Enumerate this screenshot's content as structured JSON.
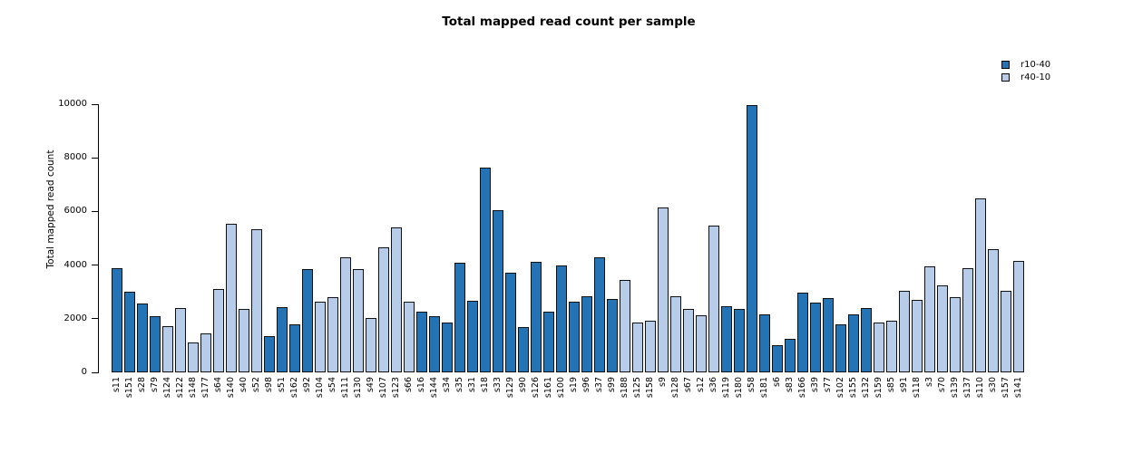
{
  "title": "Total mapped read count per sample",
  "legend": [
    {
      "label": "r10-40",
      "color": "#2473b5"
    },
    {
      "label": "r40-10",
      "color": "#b7cce9"
    }
  ],
  "chart_data": {
    "type": "bar",
    "title": "Total mapped read count per sample",
    "xlabel": "",
    "ylabel": "Total mapped read count",
    "ylim": [
      0,
      10000
    ],
    "yticks": [
      0,
      2000,
      4000,
      6000,
      8000,
      10000
    ],
    "grid": false,
    "legend_position": "top-right",
    "series_colors": {
      "r10-40": "#2473b5",
      "r40-10": "#b7cce9"
    },
    "points": [
      {
        "sample": "s11",
        "value": 3900,
        "series": "r10-40"
      },
      {
        "sample": "s151",
        "value": 3000,
        "series": "r10-40"
      },
      {
        "sample": "s28",
        "value": 2570,
        "series": "r10-40"
      },
      {
        "sample": "s79",
        "value": 2100,
        "series": "r10-40"
      },
      {
        "sample": "s124",
        "value": 1730,
        "series": "r40-10"
      },
      {
        "sample": "s122",
        "value": 2400,
        "series": "r40-10"
      },
      {
        "sample": "s148",
        "value": 1100,
        "series": "r40-10"
      },
      {
        "sample": "s177",
        "value": 1450,
        "series": "r40-10"
      },
      {
        "sample": "s64",
        "value": 3100,
        "series": "r40-10"
      },
      {
        "sample": "s140",
        "value": 5550,
        "series": "r40-10"
      },
      {
        "sample": "s40",
        "value": 2350,
        "series": "r40-10"
      },
      {
        "sample": "s52",
        "value": 5350,
        "series": "r40-10"
      },
      {
        "sample": "s98",
        "value": 1350,
        "series": "r10-40"
      },
      {
        "sample": "s51",
        "value": 2430,
        "series": "r10-40"
      },
      {
        "sample": "s162",
        "value": 1780,
        "series": "r10-40"
      },
      {
        "sample": "s92",
        "value": 3850,
        "series": "r10-40"
      },
      {
        "sample": "s104",
        "value": 2640,
        "series": "r40-10"
      },
      {
        "sample": "s54",
        "value": 2800,
        "series": "r40-10"
      },
      {
        "sample": "s111",
        "value": 4300,
        "series": "r40-10"
      },
      {
        "sample": "s130",
        "value": 3850,
        "series": "r40-10"
      },
      {
        "sample": "s49",
        "value": 2020,
        "series": "r40-10"
      },
      {
        "sample": "s107",
        "value": 4650,
        "series": "r40-10"
      },
      {
        "sample": "s123",
        "value": 5400,
        "series": "r40-10"
      },
      {
        "sample": "s66",
        "value": 2640,
        "series": "r40-10"
      },
      {
        "sample": "s16",
        "value": 2260,
        "series": "r10-40"
      },
      {
        "sample": "s144",
        "value": 2100,
        "series": "r10-40"
      },
      {
        "sample": "s34",
        "value": 1850,
        "series": "r10-40"
      },
      {
        "sample": "s35",
        "value": 4100,
        "series": "r10-40"
      },
      {
        "sample": "s31",
        "value": 2680,
        "series": "r10-40"
      },
      {
        "sample": "s18",
        "value": 7650,
        "series": "r10-40"
      },
      {
        "sample": "s33",
        "value": 6050,
        "series": "r10-40"
      },
      {
        "sample": "s129",
        "value": 3720,
        "series": "r10-40"
      },
      {
        "sample": "s90",
        "value": 1700,
        "series": "r10-40"
      },
      {
        "sample": "s126",
        "value": 4130,
        "series": "r10-40"
      },
      {
        "sample": "s161",
        "value": 2250,
        "series": "r10-40"
      },
      {
        "sample": "s100",
        "value": 4000,
        "series": "r10-40"
      },
      {
        "sample": "s19",
        "value": 2650,
        "series": "r10-40"
      },
      {
        "sample": "s96",
        "value": 2840,
        "series": "r10-40"
      },
      {
        "sample": "s37",
        "value": 4300,
        "series": "r10-40"
      },
      {
        "sample": "s99",
        "value": 2740,
        "series": "r10-40"
      },
      {
        "sample": "s188",
        "value": 3450,
        "series": "r40-10"
      },
      {
        "sample": "s125",
        "value": 1850,
        "series": "r40-10"
      },
      {
        "sample": "s158",
        "value": 1930,
        "series": "r40-10"
      },
      {
        "sample": "s9",
        "value": 6150,
        "series": "r40-10"
      },
      {
        "sample": "s128",
        "value": 2840,
        "series": "r40-10"
      },
      {
        "sample": "s67",
        "value": 2370,
        "series": "r40-10"
      },
      {
        "sample": "s12",
        "value": 2130,
        "series": "r40-10"
      },
      {
        "sample": "s36",
        "value": 5480,
        "series": "r40-10"
      },
      {
        "sample": "s119",
        "value": 2470,
        "series": "r10-40"
      },
      {
        "sample": "s180",
        "value": 2360,
        "series": "r10-40"
      },
      {
        "sample": "s58",
        "value": 9950,
        "series": "r10-40"
      },
      {
        "sample": "s181",
        "value": 2150,
        "series": "r10-40"
      },
      {
        "sample": "s6",
        "value": 1000,
        "series": "r10-40"
      },
      {
        "sample": "s83",
        "value": 1250,
        "series": "r10-40"
      },
      {
        "sample": "s166",
        "value": 2970,
        "series": "r10-40"
      },
      {
        "sample": "s39",
        "value": 2600,
        "series": "r10-40"
      },
      {
        "sample": "s77",
        "value": 2770,
        "series": "r10-40"
      },
      {
        "sample": "s102",
        "value": 1780,
        "series": "r10-40"
      },
      {
        "sample": "s155",
        "value": 2170,
        "series": "r10-40"
      },
      {
        "sample": "s132",
        "value": 2400,
        "series": "r10-40"
      },
      {
        "sample": "s159",
        "value": 1850,
        "series": "r40-10"
      },
      {
        "sample": "s85",
        "value": 1930,
        "series": "r40-10"
      },
      {
        "sample": "s91",
        "value": 3030,
        "series": "r40-10"
      },
      {
        "sample": "s118",
        "value": 2700,
        "series": "r40-10"
      },
      {
        "sample": "s3",
        "value": 3960,
        "series": "r40-10"
      },
      {
        "sample": "s70",
        "value": 3240,
        "series": "r40-10"
      },
      {
        "sample": "s139",
        "value": 2820,
        "series": "r40-10"
      },
      {
        "sample": "s137",
        "value": 3900,
        "series": "r40-10"
      },
      {
        "sample": "s110",
        "value": 6480,
        "series": "r40-10"
      },
      {
        "sample": "s30",
        "value": 4600,
        "series": "r40-10"
      },
      {
        "sample": "s157",
        "value": 3050,
        "series": "r40-10"
      },
      {
        "sample": "s141",
        "value": 4150,
        "series": "r40-10"
      }
    ]
  }
}
